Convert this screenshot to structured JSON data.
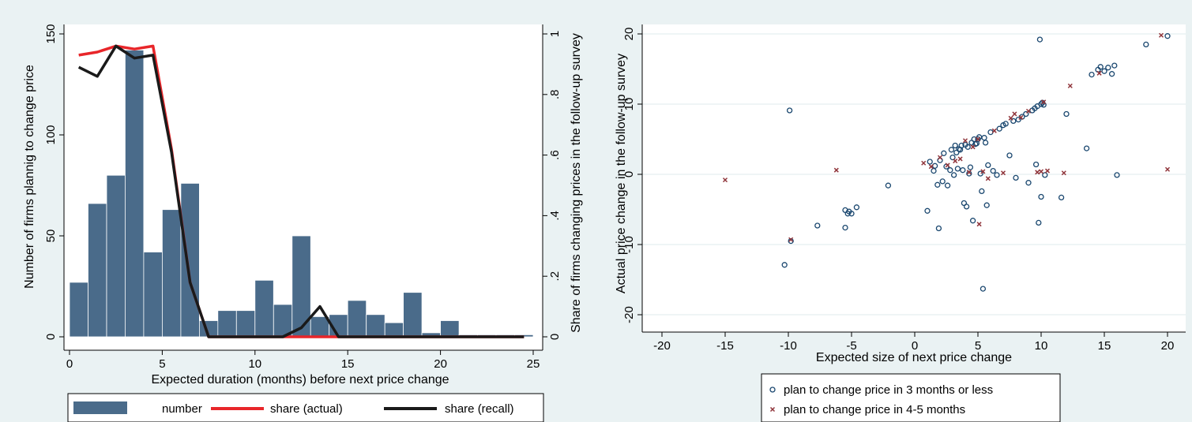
{
  "colors": {
    "background": "#eaf2f3",
    "plot_bg": "#ffffff",
    "grid": "#eaf2f3",
    "bar_fill": "#4a6b8a",
    "actual_line": "#e8262a",
    "recall_line": "#1a1a1a",
    "marker_circle": "#1a476f",
    "marker_x": "#90353b"
  },
  "chart_data": [
    {
      "type": "bar",
      "xlabel": "Expected duration (months) before next price change",
      "ylabel": "Number of firms plannig to change price",
      "y2label": "Share of firms changing prices in the follow-up survey",
      "xlim": [
        -1,
        25
      ],
      "ylim": [
        0,
        150
      ],
      "y2lim": [
        0,
        1
      ],
      "x_ticks": [
        "0",
        "5",
        "10",
        "15",
        "20",
        "25"
      ],
      "y_ticks": [
        "0",
        "50",
        "100",
        "150"
      ],
      "y2_ticks": [
        "0",
        ".2",
        ".4",
        ".6",
        ".8",
        "1"
      ],
      "bin_width": 1,
      "bars": {
        "name": "number",
        "x": [
          0,
          1,
          2,
          3,
          4,
          5,
          6,
          7,
          8,
          9,
          10,
          11,
          12,
          13,
          14,
          15,
          16,
          17,
          18,
          19,
          20,
          21,
          22,
          23,
          24
        ],
        "values": [
          27,
          66,
          80,
          142,
          42,
          63,
          76,
          8,
          13,
          13,
          28,
          16,
          50,
          10,
          11,
          18,
          11,
          7,
          22,
          2,
          8,
          1,
          1,
          1,
          1
        ]
      },
      "series": [
        {
          "name": "share (actual)",
          "x": [
            0,
            1,
            2,
            3,
            4,
            5,
            6,
            7,
            8,
            9,
            10,
            11,
            12,
            13,
            14,
            15,
            16,
            17,
            18,
            19,
            20,
            21,
            22,
            23,
            24
          ],
          "values": [
            0.93,
            0.94,
            0.96,
            0.95,
            0.96,
            0.62,
            0.18,
            0.0,
            0.0,
            0.0,
            0.0,
            0.0,
            0.0,
            0.0,
            0.0,
            0.0,
            0.0,
            0.0,
            0.0,
            0.0,
            0.0,
            0.0,
            0.0,
            0.0,
            0.0
          ]
        },
        {
          "name": "share (recall)",
          "x": [
            0,
            1,
            2,
            3,
            4,
            5,
            6,
            7,
            8,
            9,
            10,
            11,
            12,
            13,
            14,
            15,
            16,
            17,
            18,
            19,
            20,
            21,
            22,
            23,
            24
          ],
          "values": [
            0.89,
            0.86,
            0.96,
            0.92,
            0.93,
            0.61,
            0.18,
            0.0,
            0.0,
            0.0,
            0.0,
            0.0,
            0.03,
            0.1,
            0.0,
            0.0,
            0.0,
            0.0,
            0.0,
            0.0,
            0.0,
            0.0,
            0.0,
            0.0,
            0.0
          ]
        }
      ],
      "legend": {
        "placement": "bottom",
        "items": [
          {
            "label": "number",
            "kind": "bar"
          },
          {
            "label": "share (actual)",
            "kind": "actual"
          },
          {
            "label": "share (recall)",
            "kind": "recall"
          }
        ]
      }
    },
    {
      "type": "scatter",
      "xlabel": "Expected size of next price change",
      "ylabel": "Actual price change in the follow-up survey",
      "xlim": [
        -21,
        21
      ],
      "ylim": [
        -22,
        22
      ],
      "x_ticks": [
        "-20",
        "-15",
        "-10",
        "-5",
        "0",
        "5",
        "10",
        "15",
        "20"
      ],
      "y_ticks": [
        "-20",
        "-10",
        "0",
        "10",
        "20"
      ],
      "grid": true,
      "series": [
        {
          "name": "plan to change price in 3 months or less",
          "marker": "circle",
          "points": [
            [
              -10.3,
              -12.9
            ],
            [
              -9.9,
              9.1
            ],
            [
              -9.8,
              -9.5
            ],
            [
              -7.7,
              -7.3
            ],
            [
              -5.5,
              -7.6
            ],
            [
              -5.5,
              -5.1
            ],
            [
              -5.3,
              -5.6
            ],
            [
              -5.2,
              -5.3
            ],
            [
              -5.0,
              -5.6
            ],
            [
              -4.6,
              -4.7
            ],
            [
              -2.1,
              -1.6
            ],
            [
              1.0,
              -5.2
            ],
            [
              1.2,
              1.8
            ],
            [
              1.5,
              0.5
            ],
            [
              1.6,
              1.2
            ],
            [
              1.8,
              -1.5
            ],
            [
              1.9,
              -7.7
            ],
            [
              2.0,
              2.0
            ],
            [
              2.2,
              -1.0
            ],
            [
              2.3,
              3.0
            ],
            [
              2.5,
              1.1
            ],
            [
              2.6,
              -1.6
            ],
            [
              2.8,
              0.6
            ],
            [
              2.9,
              3.5
            ],
            [
              3.0,
              2.4
            ],
            [
              3.1,
              -0.1
            ],
            [
              3.2,
              4.1
            ],
            [
              3.3,
              3.1
            ],
            [
              3.4,
              0.8
            ],
            [
              3.5,
              3.6
            ],
            [
              3.6,
              3.5
            ],
            [
              3.7,
              4.1
            ],
            [
              3.8,
              0.6
            ],
            [
              3.9,
              -4.1
            ],
            [
              4.0,
              4.2
            ],
            [
              4.1,
              -4.6
            ],
            [
              4.2,
              3.9
            ],
            [
              4.3,
              0.1
            ],
            [
              4.4,
              1.0
            ],
            [
              4.5,
              4.5
            ],
            [
              4.6,
              -6.6
            ],
            [
              4.7,
              5.0
            ],
            [
              4.8,
              4.3
            ],
            [
              4.9,
              4.4
            ],
            [
              5.0,
              5.0
            ],
            [
              5.1,
              5.3
            ],
            [
              5.2,
              0.1
            ],
            [
              5.3,
              -2.4
            ],
            [
              5.4,
              -16.3
            ],
            [
              5.5,
              5.2
            ],
            [
              5.6,
              4.5
            ],
            [
              5.7,
              -4.4
            ],
            [
              5.8,
              1.3
            ],
            [
              6.0,
              6.0
            ],
            [
              6.2,
              0.5
            ],
            [
              6.5,
              -0.1
            ],
            [
              6.7,
              6.5
            ],
            [
              7.0,
              7.0
            ],
            [
              7.2,
              7.2
            ],
            [
              7.5,
              2.7
            ],
            [
              7.8,
              7.6
            ],
            [
              8.0,
              -0.5
            ],
            [
              8.2,
              7.8
            ],
            [
              8.5,
              8.2
            ],
            [
              8.8,
              8.6
            ],
            [
              9.0,
              -1.2
            ],
            [
              9.3,
              9.1
            ],
            [
              9.5,
              9.4
            ],
            [
              9.6,
              1.4
            ],
            [
              9.7,
              9.7
            ],
            [
              9.8,
              -6.9
            ],
            [
              9.9,
              19.2
            ],
            [
              10.0,
              10.0
            ],
            [
              10.0,
              -3.2
            ],
            [
              10.1,
              10.2
            ],
            [
              10.2,
              9.9
            ],
            [
              10.3,
              -0.1
            ],
            [
              11.6,
              -3.3
            ],
            [
              12.0,
              8.6
            ],
            [
              13.6,
              3.7
            ],
            [
              14.0,
              14.2
            ],
            [
              14.5,
              14.9
            ],
            [
              14.7,
              15.3
            ],
            [
              15.0,
              14.7
            ],
            [
              15.3,
              15.2
            ],
            [
              15.6,
              14.3
            ],
            [
              15.8,
              15.5
            ],
            [
              16.0,
              -0.1
            ],
            [
              18.3,
              18.5
            ],
            [
              20.0,
              19.7
            ]
          ]
        },
        {
          "name": "plan to change price in 4-5 months",
          "marker": "x",
          "points": [
            [
              -15.0,
              -0.8
            ],
            [
              -9.8,
              -9.3
            ],
            [
              -6.2,
              0.6
            ],
            [
              0.7,
              1.6
            ],
            [
              1.3,
              1.1
            ],
            [
              2.0,
              2.4
            ],
            [
              2.6,
              1.3
            ],
            [
              3.2,
              1.9
            ],
            [
              3.6,
              2.2
            ],
            [
              4.0,
              4.8
            ],
            [
              4.3,
              0.3
            ],
            [
              4.6,
              3.9
            ],
            [
              5.0,
              5.0
            ],
            [
              5.1,
              -7.1
            ],
            [
              5.4,
              0.4
            ],
            [
              5.8,
              -0.6
            ],
            [
              6.3,
              6.2
            ],
            [
              7.0,
              0.2
            ],
            [
              7.6,
              8.0
            ],
            [
              7.9,
              8.6
            ],
            [
              8.4,
              8.1
            ],
            [
              9.0,
              9.0
            ],
            [
              9.7,
              0.3
            ],
            [
              10.0,
              0.4
            ],
            [
              10.2,
              10.3
            ],
            [
              10.5,
              0.5
            ],
            [
              11.8,
              0.2
            ],
            [
              12.3,
              12.6
            ],
            [
              14.6,
              14.4
            ],
            [
              19.5,
              19.8
            ],
            [
              20.0,
              0.7
            ]
          ]
        }
      ],
      "legend": {
        "placement": "bottom",
        "items": [
          {
            "label": "plan to change price in 3 months or less",
            "kind": "circle"
          },
          {
            "label": "plan to change price in 4-5 months",
            "kind": "x"
          }
        ]
      }
    }
  ]
}
